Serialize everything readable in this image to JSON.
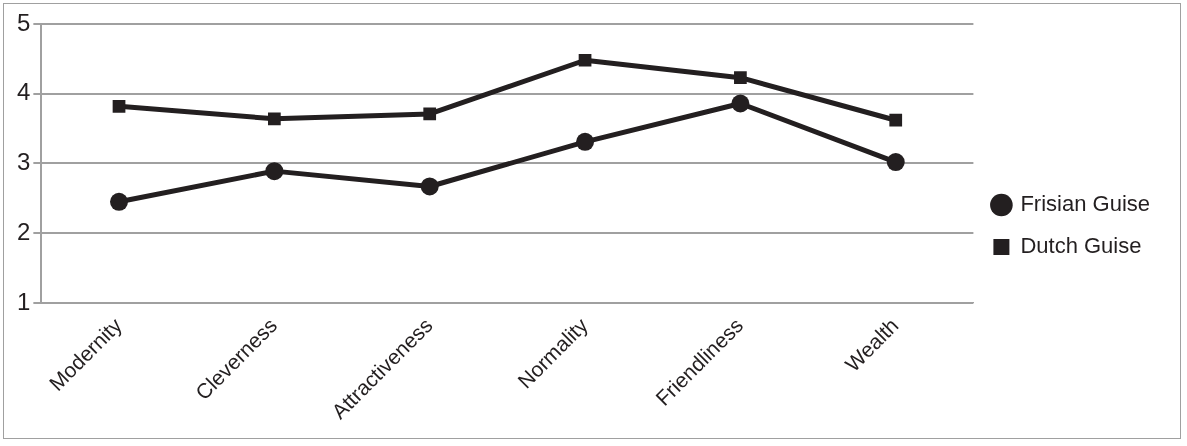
{
  "chart_data": {
    "type": "line",
    "categories": [
      "Modernity",
      "Cleverness",
      "Attractiveness",
      "Normality",
      "Friendliness",
      "Wealth"
    ],
    "series": [
      {
        "name": "Frisian Guise",
        "color": "#231f20",
        "marker": "circle",
        "values": [
          2.45,
          2.89,
          2.67,
          3.31,
          3.86,
          3.02
        ]
      },
      {
        "name": "Dutch Guise",
        "color": "#231f20",
        "marker": "square",
        "values": [
          3.82,
          3.64,
          3.71,
          4.48,
          4.23,
          3.62
        ]
      }
    ],
    "ylim": [
      1,
      5
    ],
    "yticks": [
      1,
      2,
      3,
      4,
      5
    ],
    "grid": "y",
    "legend": "right",
    "line_style": "solid"
  }
}
